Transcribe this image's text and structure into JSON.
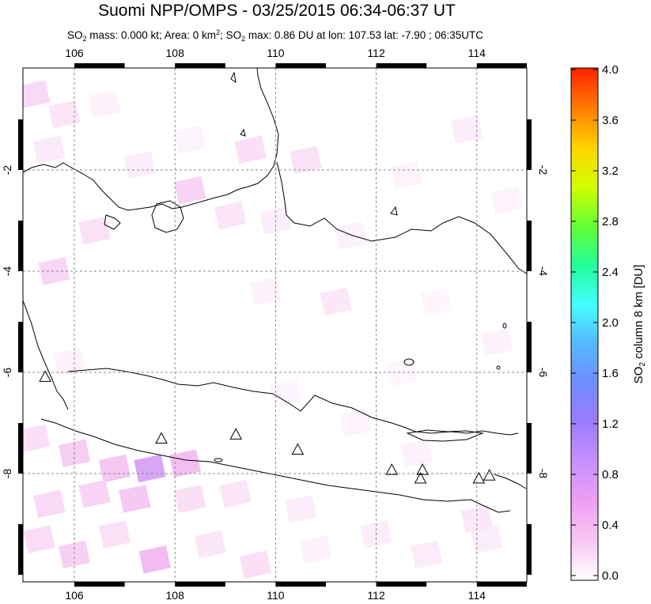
{
  "header": {
    "title": "Suomi NPP/OMPS - 03/25/2015 06:34-06:37 UT",
    "subtitle_parts": {
      "so2_a": "SO",
      "sub_a": "2",
      "mass": " mass: 0.000 kt; Area: 0 km",
      "sup": "2",
      "sep": "; SO",
      "sub_b": "2",
      "rest": " max: 0.86 DU at lon: 107.53 lat: -7.90 ; 06:35UTC"
    }
  },
  "colorbar": {
    "label_main": "SO",
    "label_sub": "2",
    "label_rest": " column 8 km [DU]",
    "ticks": [
      "4.0",
      "3.6",
      "3.2",
      "2.8",
      "2.4",
      "2.0",
      "1.6",
      "1.2",
      "0.8",
      "0.4",
      "0.0"
    ],
    "colors": [
      "#ff2200",
      "#ff7a00",
      "#ffd200",
      "#d4ff00",
      "#66ff33",
      "#22ff99",
      "#44ffff",
      "#55b8ff",
      "#6f8cff",
      "#9c7cff",
      "#c890ff",
      "#ee9ff2",
      "#f8c8f3",
      "#ffffff"
    ]
  },
  "chart_data": {
    "type": "heatmap",
    "title": "Suomi NPP/OMPS - 03/25/2015 06:34-06:37 UT",
    "x_ticks": [
      "106",
      "108",
      "110",
      "112",
      "114"
    ],
    "y_ticks": [
      "-2",
      "-4",
      "-6",
      "-8"
    ],
    "y_ticks_right": [
      "-2",
      "-4",
      "-6",
      "-8"
    ],
    "xlim": [
      105.0,
      115.0
    ],
    "ylim": [
      -10.0,
      0.0
    ],
    "grid": true,
    "colorbar_range": [
      0.0,
      4.0
    ],
    "so2_max": {
      "value": 0.86,
      "lon": 107.53,
      "lat": -7.9
    },
    "cells": [
      {
        "lon": 105.2,
        "lat": -0.5,
        "v": 0.25
      },
      {
        "lon": 105.8,
        "lat": -0.9,
        "v": 0.18
      },
      {
        "lon": 106.6,
        "lat": -0.7,
        "v": 0.1
      },
      {
        "lon": 105.5,
        "lat": -1.6,
        "v": 0.15
      },
      {
        "lon": 107.3,
        "lat": -1.9,
        "v": 0.12
      },
      {
        "lon": 108.3,
        "lat": -1.4,
        "v": 0.08
      },
      {
        "lon": 109.5,
        "lat": -1.6,
        "v": 0.22
      },
      {
        "lon": 110.6,
        "lat": -1.8,
        "v": 0.2
      },
      {
        "lon": 108.3,
        "lat": -2.4,
        "v": 0.3
      },
      {
        "lon": 109.1,
        "lat": -2.9,
        "v": 0.18
      },
      {
        "lon": 110.0,
        "lat": -3.0,
        "v": 0.12
      },
      {
        "lon": 106.4,
        "lat": -3.2,
        "v": 0.2
      },
      {
        "lon": 105.6,
        "lat": -4.0,
        "v": 0.28
      },
      {
        "lon": 109.8,
        "lat": -4.4,
        "v": 0.1
      },
      {
        "lon": 111.2,
        "lat": -4.6,
        "v": 0.16
      },
      {
        "lon": 111.5,
        "lat": -3.3,
        "v": 0.1
      },
      {
        "lon": 112.6,
        "lat": -2.1,
        "v": 0.08
      },
      {
        "lon": 113.8,
        "lat": -1.2,
        "v": 0.12
      },
      {
        "lon": 114.6,
        "lat": -2.6,
        "v": 0.08
      },
      {
        "lon": 113.2,
        "lat": -4.6,
        "v": 0.06
      },
      {
        "lon": 114.4,
        "lat": -5.4,
        "v": 0.1
      },
      {
        "lon": 105.2,
        "lat": -7.3,
        "v": 0.22
      },
      {
        "lon": 106.0,
        "lat": -7.6,
        "v": 0.35
      },
      {
        "lon": 106.8,
        "lat": -7.9,
        "v": 0.4
      },
      {
        "lon": 107.5,
        "lat": -7.9,
        "v": 0.86
      },
      {
        "lon": 108.2,
        "lat": -7.8,
        "v": 0.45
      },
      {
        "lon": 106.4,
        "lat": -8.4,
        "v": 0.3
      },
      {
        "lon": 107.2,
        "lat": -8.5,
        "v": 0.38
      },
      {
        "lon": 105.5,
        "lat": -8.6,
        "v": 0.26
      },
      {
        "lon": 108.3,
        "lat": -8.5,
        "v": 0.22
      },
      {
        "lon": 109.2,
        "lat": -8.4,
        "v": 0.18
      },
      {
        "lon": 110.5,
        "lat": -8.7,
        "v": 0.12
      },
      {
        "lon": 105.3,
        "lat": -9.3,
        "v": 0.24
      },
      {
        "lon": 106.0,
        "lat": -9.6,
        "v": 0.32
      },
      {
        "lon": 106.8,
        "lat": -9.2,
        "v": 0.2
      },
      {
        "lon": 107.6,
        "lat": -9.7,
        "v": 0.48
      },
      {
        "lon": 108.7,
        "lat": -9.4,
        "v": 0.16
      },
      {
        "lon": 109.6,
        "lat": -9.8,
        "v": 0.22
      },
      {
        "lon": 110.8,
        "lat": -9.5,
        "v": 0.1
      },
      {
        "lon": 112.0,
        "lat": -9.2,
        "v": 0.12
      },
      {
        "lon": 113.0,
        "lat": -9.6,
        "v": 0.14
      },
      {
        "lon": 114.2,
        "lat": -9.3,
        "v": 0.12
      },
      {
        "lon": 111.6,
        "lat": -7.0,
        "v": 0.08
      },
      {
        "lon": 112.8,
        "lat": -7.6,
        "v": 0.1
      },
      {
        "lon": 114.0,
        "lat": -8.9,
        "v": 0.16
      },
      {
        "lon": 110.2,
        "lat": -6.4,
        "v": 0.06
      },
      {
        "lon": 112.5,
        "lat": -6.0,
        "v": 0.06
      },
      {
        "lon": 105.9,
        "lat": -5.8,
        "v": 0.1
      }
    ],
    "volcanoes": [
      {
        "lon": 105.42,
        "lat": -6.1
      },
      {
        "lon": 107.73,
        "lat": -7.32
      },
      {
        "lon": 109.21,
        "lat": -7.24
      },
      {
        "lon": 110.44,
        "lat": -7.54
      },
      {
        "lon": 112.31,
        "lat": -7.94
      },
      {
        "lon": 112.92,
        "lat": -7.94
      },
      {
        "lon": 112.88,
        "lat": -8.11
      },
      {
        "lon": 114.04,
        "lat": -8.11
      },
      {
        "lon": 114.25,
        "lat": -8.05
      }
    ]
  }
}
